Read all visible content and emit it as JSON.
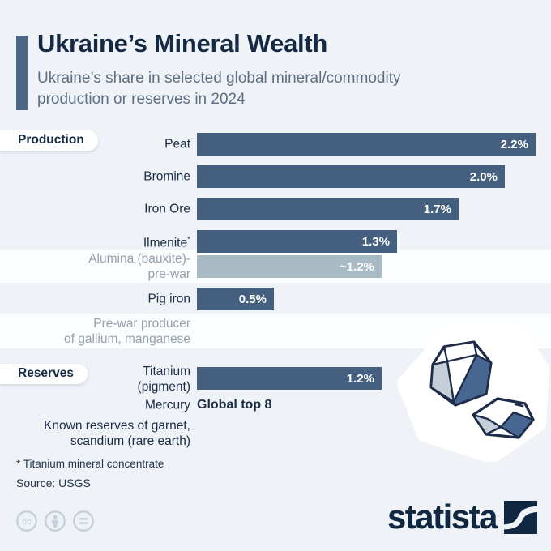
{
  "header": {
    "title": "Ukraine’s Mineral Wealth",
    "subtitle": "Ukraine’s share in selected global mineral/commodity\nproduction or reserves in 2024"
  },
  "chart_data": {
    "type": "bar",
    "title": "Ukraine’s Mineral Wealth",
    "subtitle": "Ukraine’s share in selected global mineral/commodity production or reserves in 2024",
    "unit": "%",
    "xlim": [
      0,
      2.3
    ],
    "orientation": "horizontal",
    "groups": [
      {
        "name": "Production",
        "rows": [
          {
            "label": "Peat",
            "value": 2.2,
            "value_label": "2.2%",
            "style": "dark"
          },
          {
            "label": "Bromine",
            "value": 2.0,
            "value_label": "2.0%",
            "style": "dark"
          },
          {
            "label": "Iron Ore",
            "value": 1.7,
            "value_label": "1.7%",
            "style": "dark"
          },
          {
            "label": "Ilmenite",
            "label_sup": "*",
            "value": 1.3,
            "value_label": "1.3%",
            "style": "dark"
          },
          {
            "label": "Alumina (bauxite)-\npre-war",
            "value": 1.2,
            "value_label": "~1.2%",
            "style": "light",
            "band": true,
            "muted": true
          },
          {
            "label": "Pig iron",
            "value": 0.5,
            "value_label": "0.5%",
            "style": "dark"
          },
          {
            "label": "Pre-war producer\nof gallium, manganese",
            "value": null,
            "style": "text",
            "band": true,
            "muted": true
          }
        ]
      },
      {
        "name": "Reserves",
        "rows": [
          {
            "label": "Titanium\n(pigment)",
            "value": 1.2,
            "value_label": "1.2%",
            "style": "dark"
          },
          {
            "label": "Mercury",
            "value": null,
            "note": "Global top 8",
            "style": "note"
          },
          {
            "label": "Known reserves of garnet,\nscandium (rare earth)",
            "value": null,
            "style": "text"
          }
        ]
      }
    ]
  },
  "footnotes": {
    "asterisk": "* Titanium mineral concentrate",
    "source": "Source: USGS"
  },
  "branding": {
    "logo_text": "statista",
    "license_icons": [
      "cc-icon",
      "attribution-icon",
      "equal-icon"
    ]
  },
  "colors": {
    "background": "#EFF2F7",
    "band": "#FCFDFE",
    "accent": "#4C6886",
    "title": "#152942",
    "subtitle": "#5D6F82",
    "bar_dark": "#45607E",
    "bar_light": "#A8BAC4",
    "muted_label": "#95A1AD",
    "logo_navy": "#0F2741",
    "gem_dark": "#486692",
    "gem_light": "#C6CFD8",
    "license_gray": "#C7D1DB"
  }
}
